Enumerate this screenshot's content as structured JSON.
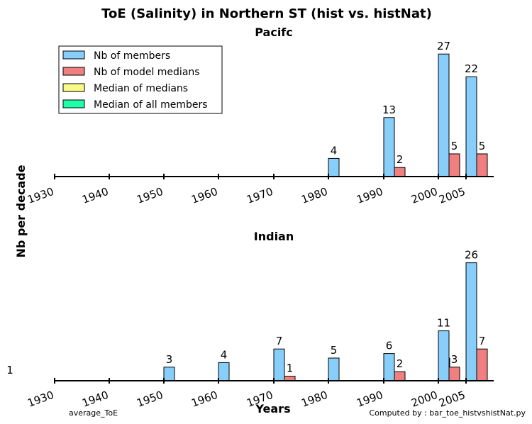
{
  "chart_data": {
    "type": "bar",
    "title": "ToE (Salinity) in Northern ST (hist vs. histNat)",
    "ylabel": "Nb per decade",
    "xlabel": "Years",
    "x_ticks": [
      "1930",
      "1940",
      "1950",
      "1960",
      "1970",
      "1980",
      "1990",
      "2000",
      "2005"
    ],
    "legend": {
      "position": "top-left",
      "entries": [
        {
          "name": "Nb of members",
          "color": "#87cefa"
        },
        {
          "name": "Nb of model medians",
          "color": "#f08080"
        },
        {
          "name": "Median of medians",
          "color": "#fafa87"
        },
        {
          "name": "Median of all members",
          "color": "#1fffaa"
        }
      ]
    },
    "panels": [
      {
        "name": "Pacifc",
        "counts": [
          {
            "series": "Nb of members",
            "decade": "1980",
            "value": 4
          },
          {
            "series": "Nb of members",
            "decade": "1990",
            "value": 13
          },
          {
            "series": "Nb of model medians",
            "decade": "1990",
            "value": 2
          },
          {
            "series": "Nb of members",
            "decade": "2000",
            "value": 27
          },
          {
            "series": "Nb of model medians",
            "decade": "2000",
            "value": 5
          },
          {
            "series": "Nb of members",
            "decade": "2005",
            "value": 22
          },
          {
            "series": "Nb of model medians",
            "decade": "2005",
            "value": 5
          }
        ],
        "markers": [
          {
            "series": "Median of all members",
            "decade": "2000"
          },
          {
            "series": "Median of medians",
            "decade": "2000"
          }
        ]
      },
      {
        "name": "Indian",
        "counts": [
          {
            "series": "Nb of members",
            "decade": "1950",
            "value": 3
          },
          {
            "series": "Nb of members",
            "decade": "1960",
            "value": 4
          },
          {
            "series": "Nb of members",
            "decade": "1970",
            "value": 7
          },
          {
            "series": "Nb of model medians",
            "decade": "1970",
            "value": 1
          },
          {
            "series": "Nb of members",
            "decade": "1980",
            "value": 5
          },
          {
            "series": "Nb of members",
            "decade": "1990",
            "value": 6
          },
          {
            "series": "Nb of model medians",
            "decade": "1990",
            "value": 2
          },
          {
            "series": "Nb of members",
            "decade": "2000",
            "value": 11
          },
          {
            "series": "Nb of model medians",
            "decade": "2000",
            "value": 3
          },
          {
            "series": "Nb of members",
            "decade": "2005",
            "value": 26
          },
          {
            "series": "Nb of model medians",
            "decade": "2005",
            "value": 7
          }
        ],
        "markers": [
          {
            "series": "Median of all members",
            "decade": "2000"
          },
          {
            "series": "Median of medians",
            "decade": "2005"
          }
        ]
      }
    ]
  },
  "side_label": "1",
  "footer": {
    "left": "average_ToE",
    "right": "Computed by : bar_toe_histvshistNat.py"
  }
}
